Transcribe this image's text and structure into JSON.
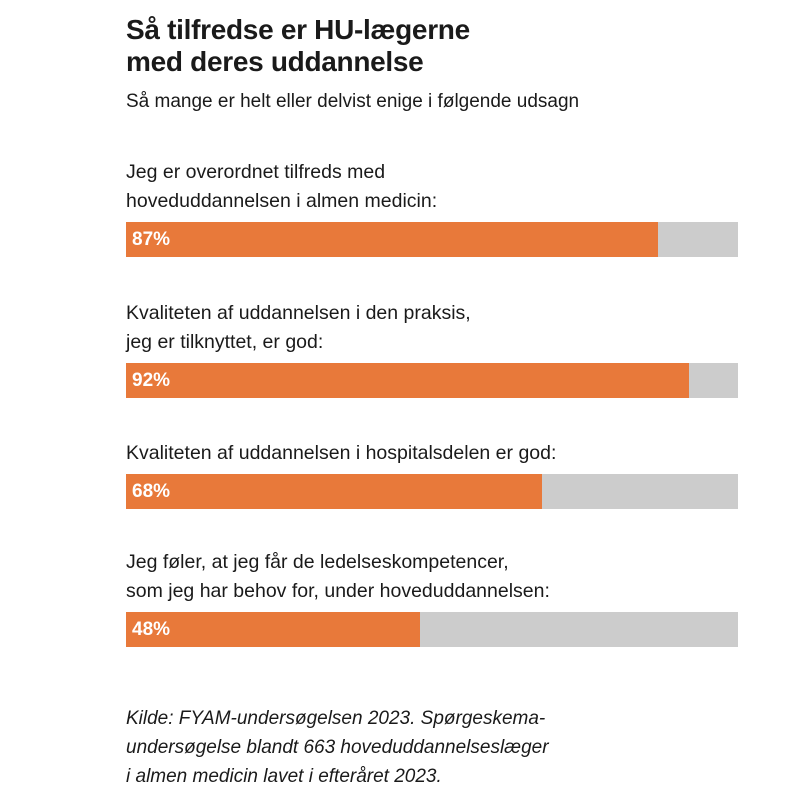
{
  "chart_data": {
    "type": "bar",
    "orientation": "horizontal",
    "title": "Så tilfredse er HU-lægerne med deres uddannelse",
    "subtitle": "Så mange er helt eller delvist enige i følgende udsagn",
    "categories": [
      "Jeg er overordnet tilfreds med\nhoveduddannelsen i almen medicin:",
      "Kvaliteten af uddannelsen i den praksis,\njeg er tilknyttet, er god:",
      "Kvaliteten af uddannelsen i hospitalsdelen er god:",
      "Jeg føler, at jeg får de ledelseskompetencer,\nsom jeg har behov for, under hoveduddannelsen:"
    ],
    "values": [
      87,
      92,
      68,
      48
    ],
    "value_labels": [
      "87%",
      "92%",
      "68%",
      "48%"
    ],
    "xlim": [
      0,
      100
    ],
    "source": "Kilde: FYAM-undersøgelsen 2023. Spørgeskema-\nundersøgelse blandt 663 hoveduddannelseslæger\ni almen medicin lavet i efteråret 2023.",
    "colors": {
      "bar": "#e8793a",
      "track": "#cccccc",
      "value_text": "#ffffff"
    }
  }
}
